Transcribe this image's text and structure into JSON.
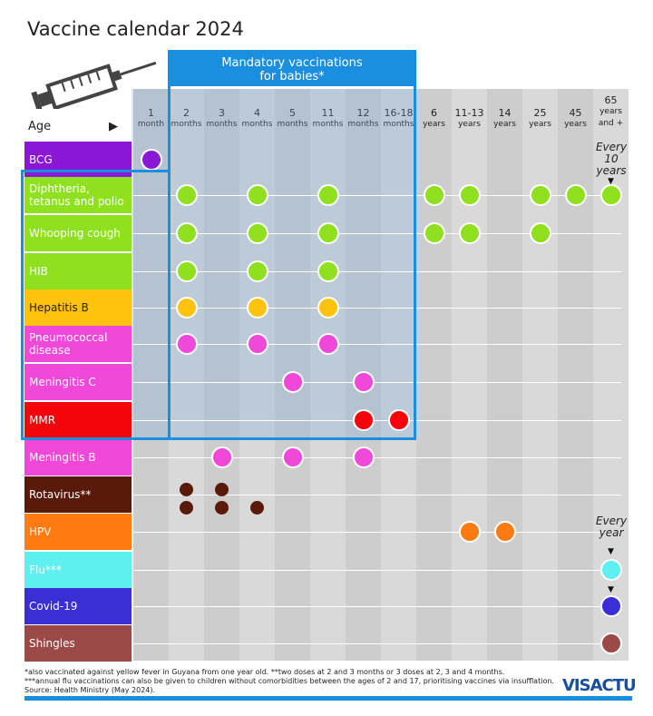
{
  "title": "Vaccine calendar 2024",
  "mandatory_label": [
    "Mandatory vaccinations",
    "for babies*"
  ],
  "age_label": "Age",
  "age_arrow": "▶",
  "columns": [
    {
      "top": "1",
      "bottom": "month"
    },
    {
      "top": "2",
      "bottom": "months"
    },
    {
      "top": "3",
      "bottom": "months"
    },
    {
      "top": "4",
      "bottom": "months"
    },
    {
      "top": "5",
      "bottom": "months"
    },
    {
      "top": "11",
      "bottom": "months"
    },
    {
      "top": "12",
      "bottom": "months"
    },
    {
      "top": "16-18",
      "bottom": "months"
    },
    {
      "top": "6",
      "bottom": "years"
    },
    {
      "top": "11-13",
      "bottom": "years"
    },
    {
      "top": "14",
      "bottom": "years"
    },
    {
      "top": "25",
      "bottom": "years"
    },
    {
      "top": "45",
      "bottom": "years"
    },
    {
      "top": "65",
      "bottom": "years and +"
    }
  ],
  "rows": [
    {
      "label": "BCG",
      "color": "#8a17d6",
      "text_color": "#ffffff",
      "doses": [
        0
      ]
    },
    {
      "label": "Diphtheria, tetanus and polio",
      "color": "#8fe01e",
      "text_color": "#ffffff",
      "doses": [
        1,
        3,
        5,
        8,
        9,
        11,
        12,
        13
      ]
    },
    {
      "label": "Whooping cough",
      "color": "#8fe01e",
      "text_color": "#ffffff",
      "doses": [
        1,
        3,
        5,
        8,
        9,
        11
      ]
    },
    {
      "label": "HIB",
      "color": "#8fe01e",
      "text_color": "#ffffff",
      "doses": [
        1,
        3,
        5
      ]
    },
    {
      "label": "Hepatitis B",
      "color": "#ffc30f",
      "text_color": "#222222",
      "doses": [
        1,
        3,
        5
      ]
    },
    {
      "label": "Pneumococcal disease",
      "color": "#f048d8",
      "text_color": "#ffffff",
      "doses": [
        1,
        3,
        5
      ]
    },
    {
      "label": "Meningitis C",
      "color": "#f048d8",
      "text_color": "#ffffff",
      "doses": [
        4,
        6
      ]
    },
    {
      "label": "MMR",
      "color": "#f2060c",
      "text_color": "#ffffff",
      "doses": [
        6,
        7
      ]
    },
    {
      "label": "Meningitis B",
      "color": "#f048d8",
      "text_color": "#ffffff",
      "doses": [
        2,
        4,
        6
      ]
    },
    {
      "label": "Rotavirus**",
      "color": "#5a1a0a",
      "text_color": "#ffffff",
      "doses": [],
      "small_doses": [
        [
          1,
          2
        ],
        [
          1,
          2,
          3
        ]
      ]
    },
    {
      "label": "HPV",
      "color": "#ff7a10",
      "text_color": "#ffffff",
      "doses": [
        9,
        10
      ]
    },
    {
      "label": "Flu***",
      "color": "#5ef0f0",
      "text_color": "#ffffff",
      "doses": [
        13
      ]
    },
    {
      "label": "Covid-19",
      "color": "#3a2fd6",
      "text_color": "#ffffff",
      "doses": [
        13
      ]
    },
    {
      "label": "Shingles",
      "color": "#9c4a48",
      "text_color": "#ffffff",
      "doses": [
        13
      ]
    }
  ],
  "notes": {
    "every_10_years": [
      "Every",
      "10",
      "years"
    ],
    "every_year": [
      "Every",
      "year"
    ]
  },
  "footnotes": [
    "*also vaccinated against yellow fever in Guyana from  one year old. **two doses at 2 and 3 months or 3 doses at 2, 3 and 4 months.",
    "***annual flu vaccinations can also be given to children without comorbidities between the ages of 2 and 17, prioritising vaccines via insufflation.",
    "Source: Health Ministry (May 2024)."
  ],
  "brand": "VISACTU"
}
